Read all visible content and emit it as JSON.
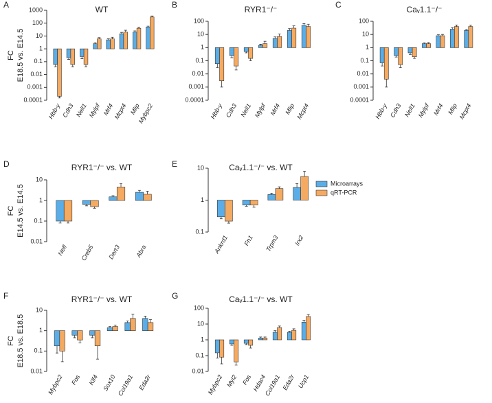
{
  "chart_data": [
    {
      "type": "bar",
      "label": "A",
      "title": "WT",
      "ylabel": [
        "FC",
        "E18.5 vs. E14.5"
      ],
      "log": true,
      "ylim": [
        0.0001,
        1000
      ],
      "yticks": [
        0.0001,
        0.001,
        0.01,
        0.1,
        1,
        10,
        100,
        1000
      ],
      "categories": [
        "Hbb-y",
        "Cdh3",
        "Nell1",
        "Mylpf",
        "Mrf4",
        "Mcpt4",
        "Mlip",
        "Mybpc2"
      ],
      "series": [
        {
          "name": "Microarrays",
          "color": "#5aade6",
          "values": [
            0.06,
            0.2,
            0.25,
            2.5,
            5,
            15,
            20,
            50
          ],
          "errors": [
            0.02,
            0.05,
            0.08,
            0.5,
            1,
            4,
            5,
            8
          ]
        },
        {
          "name": "qRT-PCR",
          "color": "#f5aa62",
          "values": [
            0.0002,
            0.06,
            0.06,
            6,
            6,
            20,
            40,
            300
          ],
          "errors": [
            5e-05,
            0.02,
            0.02,
            1.5,
            2,
            8,
            10,
            60
          ]
        }
      ]
    },
    {
      "type": "bar",
      "label": "B",
      "title": "RYR1⁻/⁻",
      "log": true,
      "ylim": [
        0.0001,
        100
      ],
      "yticks": [
        0.0001,
        0.001,
        0.01,
        0.1,
        1,
        10,
        100
      ],
      "categories": [
        "Hbb-y",
        "Cdh3",
        "Nell1",
        "Mylpf",
        "Mrf4",
        "Mlip",
        "Mcpt4"
      ],
      "series": [
        {
          "name": "Microarrays",
          "color": "#5aade6",
          "values": [
            0.06,
            0.25,
            0.5,
            1.5,
            5,
            20,
            50
          ],
          "errors": [
            0.03,
            0.08,
            0.1,
            0.3,
            1.5,
            8,
            15
          ]
        },
        {
          "name": "qRT-PCR",
          "color": "#f5aa62",
          "values": [
            0.003,
            0.04,
            0.15,
            2,
            7,
            30,
            40
          ],
          "errors": [
            0.002,
            0.02,
            0.05,
            1,
            4,
            15,
            20
          ]
        }
      ]
    },
    {
      "type": "bar",
      "label": "C",
      "title": "Caᵥ1.1⁻/⁻",
      "log": true,
      "ylim": [
        0.0001,
        100
      ],
      "yticks": [
        0.0001,
        0.001,
        0.01,
        0.1,
        1,
        10,
        100
      ],
      "categories": [
        "Hbb-y",
        "Cdh3",
        "Nell1",
        "Mylpf",
        "Mrf4",
        "Mlip",
        "Mcpt4"
      ],
      "series": [
        {
          "name": "Microarrays",
          "color": "#5aade6",
          "values": [
            0.07,
            0.25,
            0.4,
            2,
            8,
            25,
            20
          ],
          "errors": [
            0.03,
            0.06,
            0.1,
            0.3,
            1.5,
            8,
            4
          ]
        },
        {
          "name": "qRT-PCR",
          "color": "#f5aa62",
          "values": [
            0.004,
            0.05,
            0.2,
            2,
            8,
            40,
            40
          ],
          "errors": [
            0.003,
            0.02,
            0.05,
            0.4,
            2,
            12,
            10
          ]
        }
      ]
    },
    {
      "type": "bar",
      "label": "D",
      "title": "RYR1⁻/⁻ vs. WT",
      "ylabel": [
        "FC",
        "E14.5 vs. E14.5"
      ],
      "log": true,
      "ylim": [
        0.01,
        10
      ],
      "yticks": [
        0.01,
        0.1,
        1,
        10
      ],
      "categories": [
        "Nefl",
        "Creb5",
        "Dert3",
        "Abra"
      ],
      "series": [
        {
          "name": "Microarrays",
          "color": "#5aade6",
          "values": [
            0.1,
            0.65,
            1.5,
            2.5
          ],
          "errors": [
            0.02,
            0.1,
            0.2,
            0.6
          ]
        },
        {
          "name": "qRT-PCR",
          "color": "#f5aa62",
          "values": [
            0.1,
            0.5,
            4.5,
            2
          ],
          "errors": [
            0.02,
            0.08,
            2,
            0.8
          ]
        }
      ]
    },
    {
      "type": "bar",
      "label": "E",
      "title": "Caᵥ1.1⁻/⁻ vs. WT",
      "log": true,
      "ylim": [
        0.1,
        10
      ],
      "yticks": [
        0.1,
        1,
        10
      ],
      "categories": [
        "Ankrd1",
        "Fn1",
        "Trpm3",
        "Irx2"
      ],
      "series": [
        {
          "name": "Microarrays",
          "color": "#5aade6",
          "values": [
            0.3,
            0.7,
            1.5,
            2.5
          ],
          "errors": [
            0.04,
            0.06,
            0.15,
            0.8
          ]
        },
        {
          "name": "qRT-PCR",
          "color": "#f5aa62",
          "values": [
            0.22,
            0.7,
            2.3,
            5.5
          ],
          "errors": [
            0.03,
            0.1,
            0.3,
            2.5
          ]
        }
      ]
    },
    {
      "type": "bar",
      "label": "F",
      "title": "RYR1⁻/⁻ vs. WT",
      "ylabel": [
        "FC",
        "E18.5 vs. E18.5"
      ],
      "log": true,
      "ylim": [
        0.01,
        10
      ],
      "yticks": [
        0.01,
        0.1,
        1,
        10
      ],
      "categories": [
        "Mybpc2",
        "Fos",
        "Klf4",
        "Sox10",
        "Col19a1",
        "Eda2r"
      ],
      "series": [
        {
          "name": "Microarrays",
          "color": "#5aade6",
          "values": [
            0.18,
            0.6,
            0.6,
            1.4,
            2.5,
            4
          ],
          "errors": [
            0.1,
            0.15,
            0.15,
            0.2,
            0.5,
            1.2
          ]
        },
        {
          "name": "qRT-PCR",
          "color": "#f5aa62",
          "values": [
            0.1,
            0.35,
            0.18,
            1.6,
            4,
            2.5
          ],
          "errors": [
            0.07,
            0.1,
            0.14,
            0.3,
            2.5,
            1
          ]
        }
      ]
    },
    {
      "type": "bar",
      "label": "G",
      "title": "Caᵥ1.1⁻/⁻ vs. WT",
      "log": true,
      "ylim": [
        0.01,
        100
      ],
      "yticks": [
        0.01,
        0.1,
        1,
        10,
        100
      ],
      "categories": [
        "Mybpc2",
        "Myl2",
        "Fos",
        "Hdac4",
        "Col19a1",
        "Eda2r",
        "Ucp1"
      ],
      "series": [
        {
          "name": "Microarrays",
          "color": "#5aade6",
          "values": [
            0.15,
            0.55,
            0.6,
            1.3,
            3,
            3,
            13
          ],
          "errors": [
            0.08,
            0.1,
            0.1,
            0.2,
            0.8,
            0.5,
            4
          ]
        },
        {
          "name": "qRT-PCR",
          "color": "#f5aa62",
          "values": [
            0.08,
            0.04,
            0.45,
            1.3,
            6,
            4,
            30
          ],
          "errors": [
            0.05,
            0.015,
            0.15,
            0.2,
            1.5,
            1,
            10
          ]
        }
      ]
    }
  ]
}
